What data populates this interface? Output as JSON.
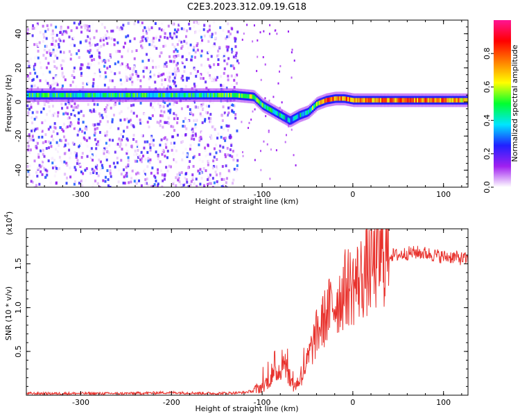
{
  "title": "C2E3.2023.312.09.19.G18",
  "chart_data": [
    {
      "type": "heatmap",
      "xlabel": "Height of straight line (km)",
      "ylabel": "Frequency (Hz)",
      "xlim": [
        -360,
        127
      ],
      "ylim": [
        -50,
        48
      ],
      "xticks": [
        -300,
        -200,
        -100,
        0,
        100
      ],
      "yticks": [
        -40,
        -20,
        0,
        20,
        40
      ],
      "colorbar": {
        "label": "Normalized spectral amplitude",
        "range": [
          0.0,
          1.0
        ],
        "ticks": [
          "0.0",
          "0.2",
          "0.4",
          "0.6",
          "0.8"
        ],
        "colors": [
          "#ffffff",
          "#a020f0",
          "#2020ff",
          "#00e5ff",
          "#00ff30",
          "#ffff00",
          "#ff8000",
          "#ff0000",
          "#ff1493"
        ]
      },
      "ridge_frequency": {
        "x": [
          -360,
          -150,
          -130,
          -110,
          -100,
          -90,
          -80,
          -70,
          -60,
          -50,
          -40,
          -30,
          -20,
          -10,
          0,
          50,
          100,
          127
        ],
        "y": [
          4,
          4,
          4,
          3,
          -2,
          -5,
          -8,
          -11,
          -8,
          -6,
          -1,
          1,
          2,
          2,
          1,
          1,
          1,
          1
        ]
      },
      "ridge_amplitude": {
        "x": [
          -360,
          -150,
          -120,
          -100,
          -70,
          -50,
          -30,
          -10,
          0,
          50,
          100,
          127
        ],
        "y": [
          0.45,
          0.45,
          0.55,
          0.5,
          0.35,
          0.4,
          0.8,
          0.75,
          0.7,
          0.75,
          0.75,
          0.65
        ]
      }
    },
    {
      "type": "line",
      "xlabel": "Height of straight line (km)",
      "ylabel": "SNR (10 * v/v)",
      "y_scale_note": "(x10",
      "y_scale_exp": "4",
      "y_scale_close": ")",
      "xlim": [
        -360,
        127
      ],
      "ylim": [
        0,
        1.9
      ],
      "xticks": [
        -300,
        -200,
        -100,
        0,
        100
      ],
      "yticks": [
        0.5,
        1.0,
        1.5
      ],
      "ytick_labels": [
        "0.5",
        "1.0",
        "1.5"
      ],
      "line_color": "#e8322d",
      "series": [
        {
          "x": [
            -360,
            -300,
            -250,
            -200,
            -150,
            -120,
            -110,
            -100,
            -90,
            -80,
            -75,
            -70,
            -65,
            -60,
            -55,
            -50,
            -45,
            -40,
            -35,
            -30,
            -25,
            -20,
            -15,
            -10,
            -5,
            0,
            10,
            20,
            30,
            40,
            50,
            60,
            70,
            80,
            90,
            100,
            110,
            120,
            127
          ],
          "y": [
            0.02,
            0.02,
            0.02,
            0.03,
            0.02,
            0.03,
            0.05,
            0.1,
            0.2,
            0.3,
            0.4,
            0.2,
            0.1,
            0.15,
            0.25,
            0.4,
            0.55,
            0.7,
            0.8,
            0.9,
            1.0,
            1.05,
            1.1,
            1.2,
            1.25,
            1.25,
            1.35,
            1.45,
            1.55,
            1.6,
            1.6,
            1.62,
            1.63,
            1.62,
            1.6,
            1.58,
            1.58,
            1.56,
            1.55
          ]
        }
      ]
    }
  ]
}
